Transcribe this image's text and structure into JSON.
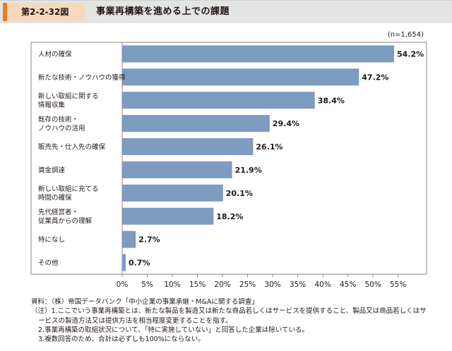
{
  "header": {
    "figure_number": "第2-2-32図",
    "title": "事業再構築を進める上での課題"
  },
  "colors": {
    "bar": "#7e9bc0",
    "axis": "#6b6b6b",
    "accent": "#ed7d1a"
  },
  "chart_data": {
    "type": "bar",
    "orientation": "horizontal",
    "title": "事業再構築を進める上での課題",
    "sample_note": "(n=1,654)",
    "categories": [
      [
        "人材の確保"
      ],
      [
        "新たな技術・ノウハウの獲得"
      ],
      [
        "新しい取組に関する",
        "情報収集"
      ],
      [
        "既存の技術・",
        "ノウハウの活用"
      ],
      [
        "販売先・仕入先の確保"
      ],
      [
        "資金調達"
      ],
      [
        "新しい取組に充てる",
        "時間の確保"
      ],
      [
        "先代経営者・",
        "従業員からの理解"
      ],
      [
        "特になし"
      ],
      [
        "その他"
      ]
    ],
    "values": [
      54.2,
      47.2,
      38.4,
      29.4,
      26.1,
      21.9,
      20.1,
      18.2,
      2.7,
      0.7
    ],
    "value_labels": [
      "54.2%",
      "47.2%",
      "38.4%",
      "29.4%",
      "26.1%",
      "21.9%",
      "20.1%",
      "18.2%",
      "2.7%",
      "0.7%"
    ],
    "xlim": [
      0,
      60
    ],
    "ticks": [
      0,
      5,
      10,
      15,
      20,
      25,
      30,
      35,
      40,
      45,
      50,
      55
    ],
    "tick_labels": [
      "0%",
      "5%",
      "10%",
      "15%",
      "20%",
      "25%",
      "30%",
      "35%",
      "40%",
      "45%",
      "50%",
      "55%"
    ]
  },
  "notes": {
    "source": "資料：（株）帝国データバンク「中小企業の事業承継・M&Aに関する調査」",
    "note1_a": "（注）1.ここでいう事業再構築とは、新たな製品を製造又は新たな商品若しくはサービスを提供すること、製品又は商品若しくはサ",
    "note1_b": "ービスの製造方法又は提供方法を相当程度変更することを指す。",
    "note2": "2.事業再構築の取組状況について、「特に実施していない」と回答した企業は除いている。",
    "note3": "3.複数回答のため、合計は必ずしも100%にならない。"
  }
}
